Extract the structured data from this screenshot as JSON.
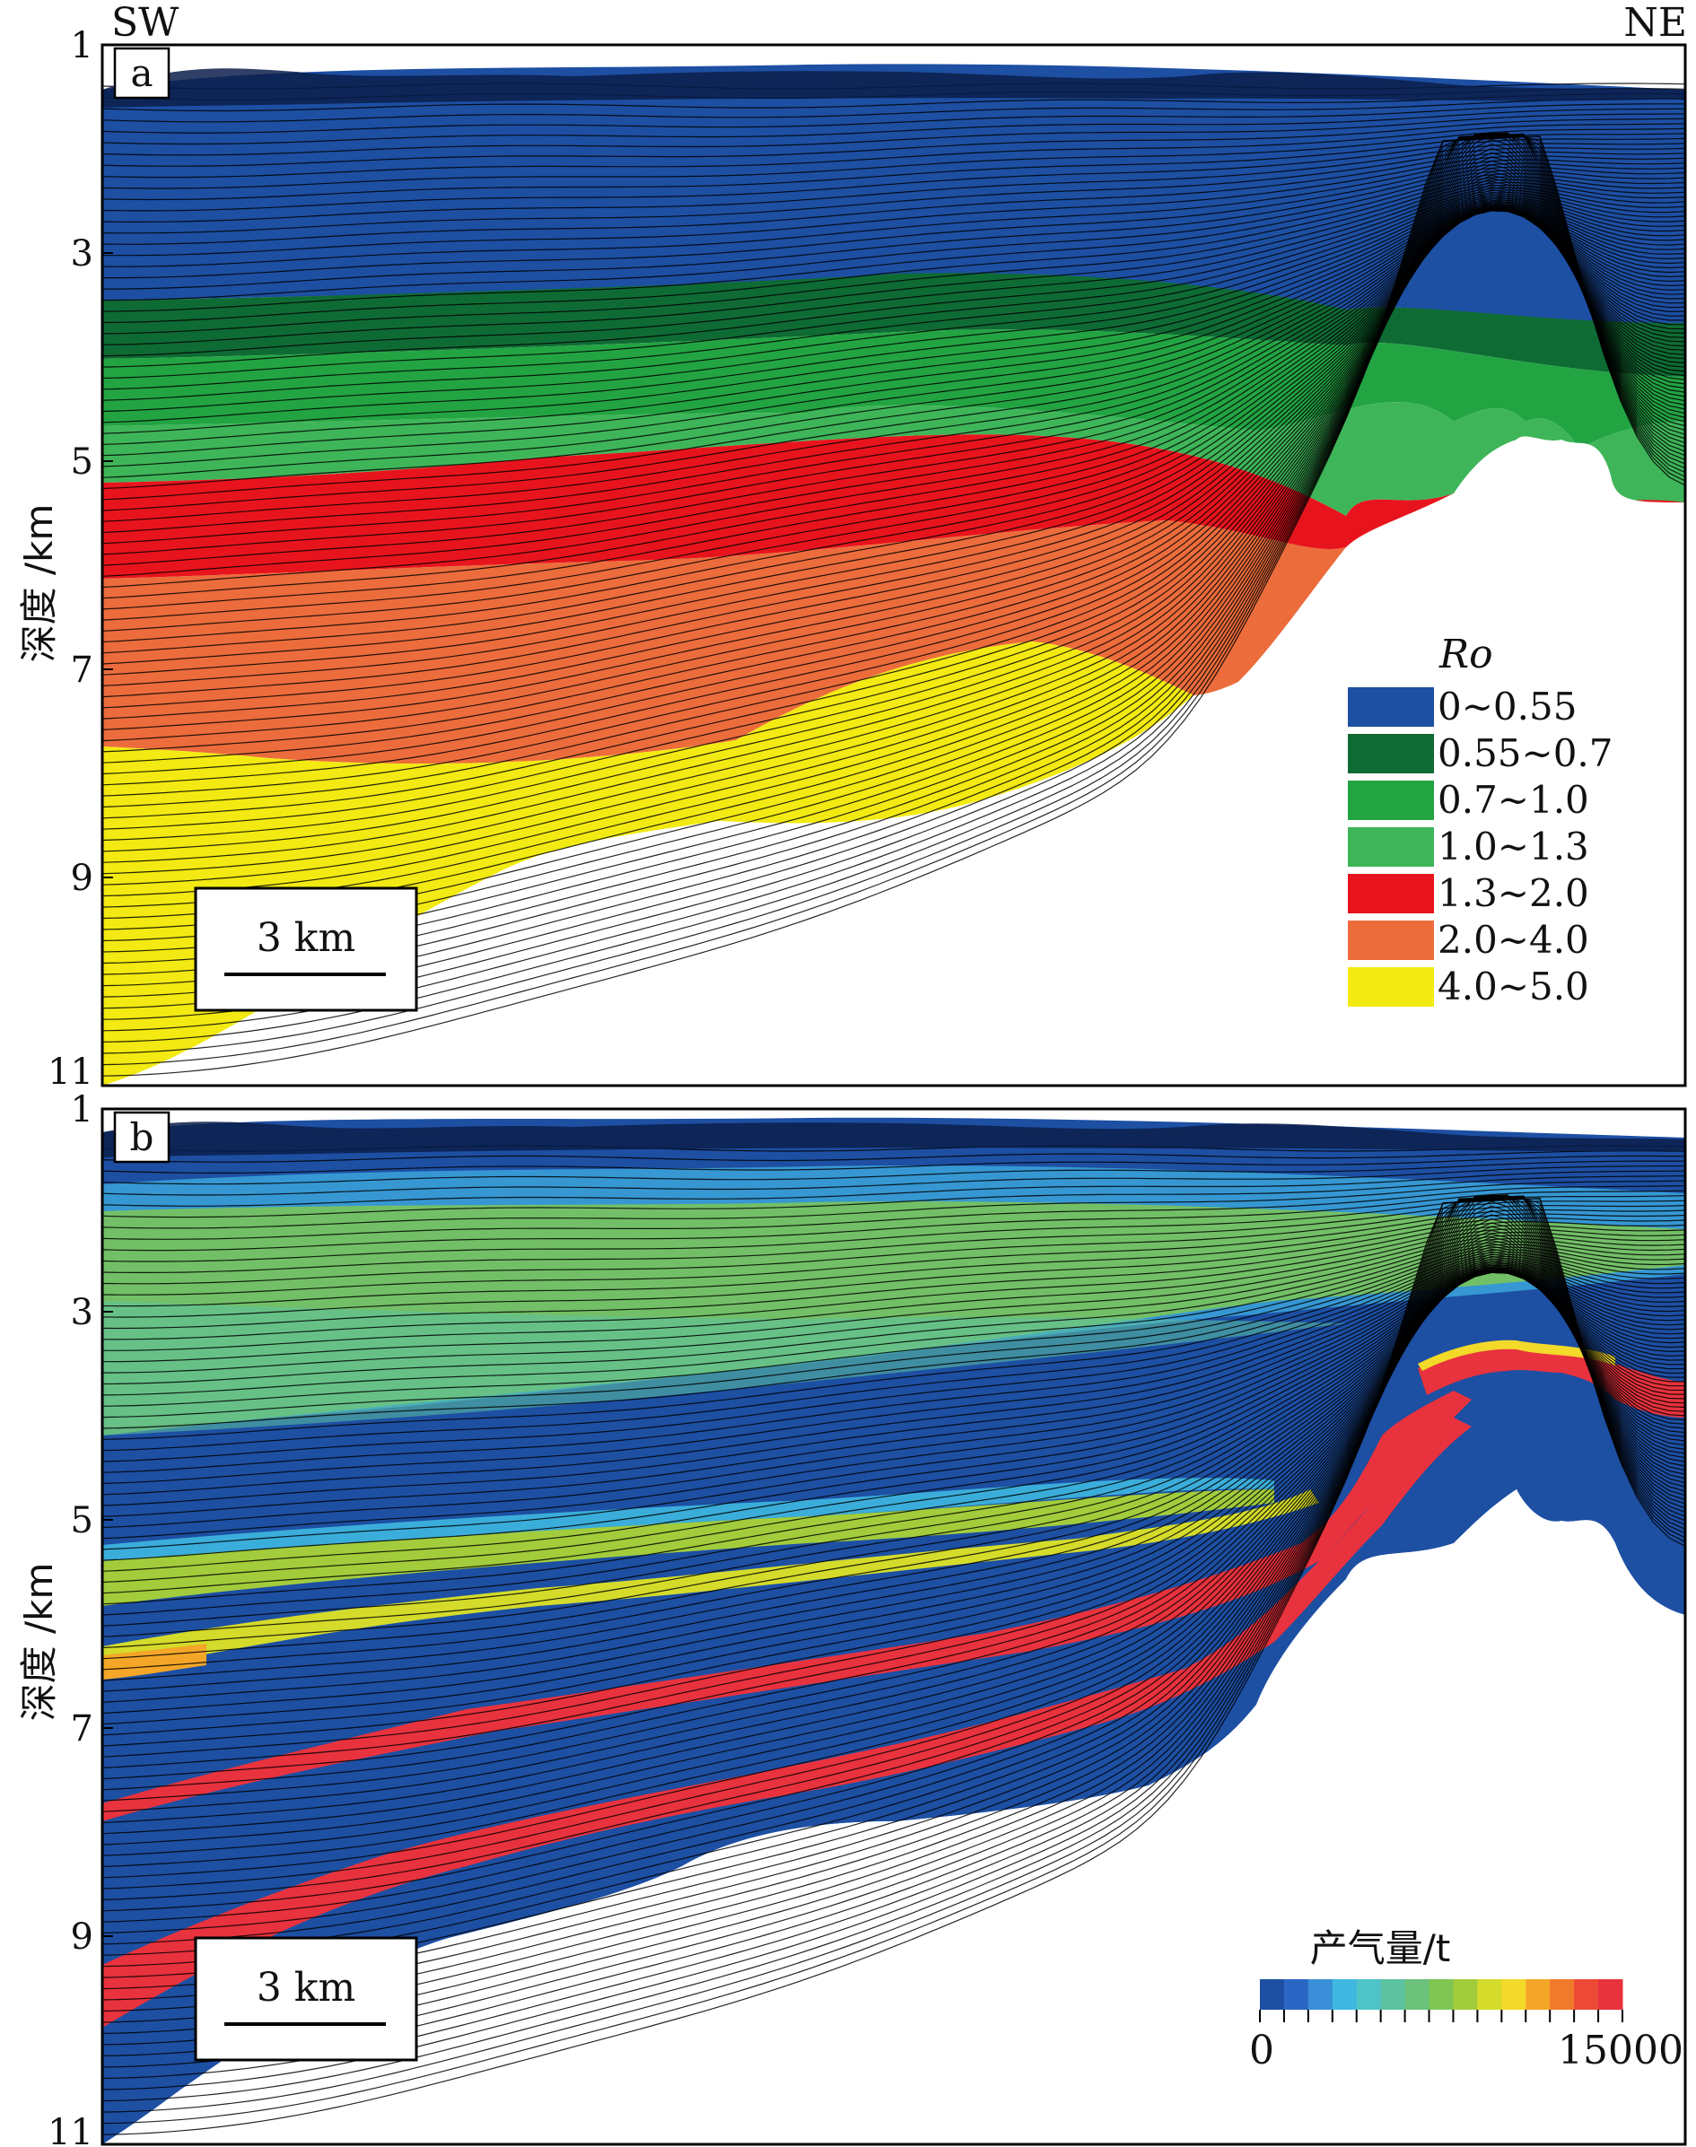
{
  "orientation": {
    "left": "SW",
    "right": "NE"
  },
  "panels": [
    {
      "id": "a",
      "label": "a",
      "y_axis_title": "深度 /km",
      "y_ticks": [
        "1",
        "3",
        "5",
        "7",
        "9",
        "11"
      ],
      "scale_bar": "3 km",
      "legend": {
        "title": "Ro",
        "items": [
          {
            "label": "0~0.55",
            "color": "#1d4fa3"
          },
          {
            "label": "0.55~0.7",
            "color": "#0f6b34"
          },
          {
            "label": "0.7~1.0",
            "color": "#23a443"
          },
          {
            "label": "1.0~1.3",
            "color": "#3fb559"
          },
          {
            "label": "1.3~2.0",
            "color": "#e8141d"
          },
          {
            "label": "2.0~4.0",
            "color": "#ec6c3c"
          },
          {
            "label": "4.0~5.0",
            "color": "#f2ea12"
          }
        ]
      }
    },
    {
      "id": "b",
      "label": "b",
      "y_axis_title": "深度 /km",
      "y_ticks": [
        "1",
        "3",
        "5",
        "7",
        "9",
        "11"
      ],
      "scale_bar": "3 km",
      "colorbar": {
        "title": "产气量/t",
        "min_label": "0",
        "max_label": "15000",
        "colors": [
          "#1d4fa3",
          "#2a66c4",
          "#3a8fd8",
          "#3fb7e0",
          "#4fc4c8",
          "#5cc2a0",
          "#6cc27a",
          "#7ec553",
          "#a2cc3c",
          "#d4db2a",
          "#f2d92a",
          "#f4a628",
          "#f07a2c",
          "#ec4a36",
          "#e8323d"
        ]
      }
    }
  ]
}
